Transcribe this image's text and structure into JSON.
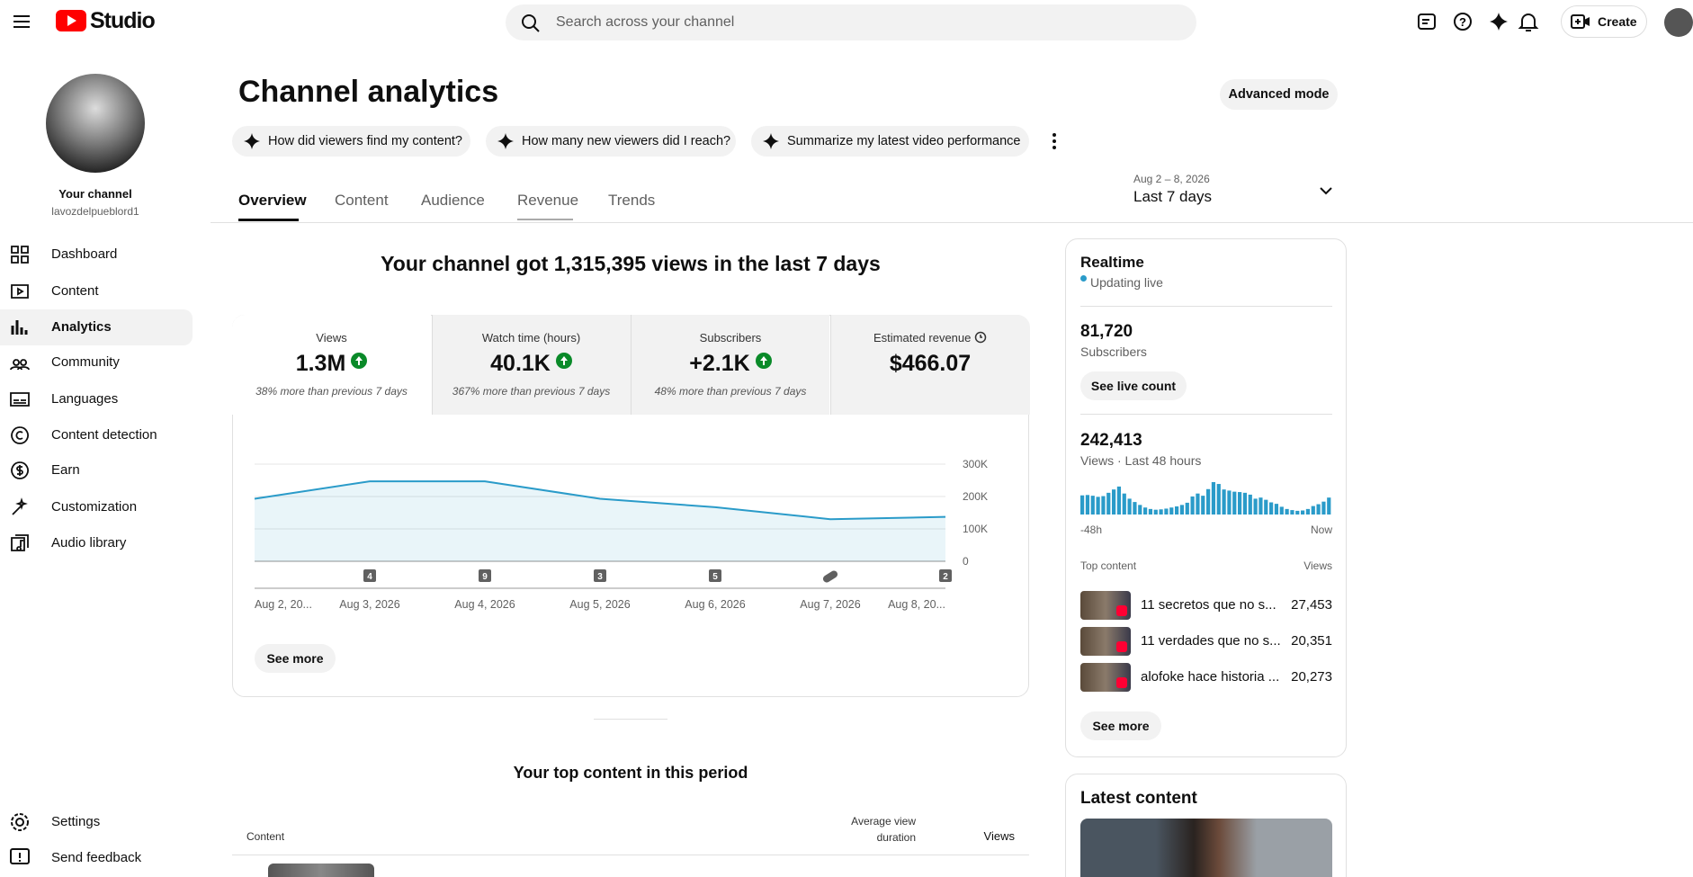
{
  "header": {
    "logo": "Studio",
    "search_placeholder": "Search across your channel",
    "create": "Create"
  },
  "sidebar": {
    "channel_label": "Your channel",
    "handle": "lavozdelpueblord1",
    "menu": [
      "Dashboard",
      "Content",
      "Analytics",
      "Community",
      "Languages",
      "Content detection",
      "Earn",
      "Customization",
      "Audio library"
    ],
    "footer": [
      "Settings",
      "Send feedback"
    ]
  },
  "page": {
    "title": "Channel analytics",
    "advanced_mode": "Advanced mode",
    "prompts": [
      "How did viewers find my content?",
      "How many new viewers did I reach?",
      "Summarize my latest video performance"
    ],
    "tabs": [
      "Overview",
      "Content",
      "Audience",
      "Revenue",
      "Trends"
    ],
    "date_range": "Aug 2 – 8, 2026",
    "period": "Last 7 days",
    "headline": "Your channel got 1,315,395 views in the last 7 days"
  },
  "metrics": [
    {
      "label": "Views",
      "value": "1.3M",
      "change": "38% more than previous 7 days"
    },
    {
      "label": "Watch time (hours)",
      "value": "40.1K",
      "change": "367% more than previous 7 days"
    },
    {
      "label": "Subscribers",
      "value": "+2.1K",
      "change": "48% more than previous 7 days"
    },
    {
      "label": "Estimated revenue",
      "value": "$466.07"
    }
  ],
  "chart_data": [
    {
      "type": "line",
      "x": [
        "Aug 2, 20...",
        "Aug 3, 2026",
        "Aug 4, 2026",
        "Aug 5, 2026",
        "Aug 6, 2026",
        "Aug 7, 2026",
        "Aug 8, 20..."
      ],
      "values": [
        193000,
        247000,
        247000,
        193000,
        167000,
        130000,
        137000
      ],
      "ylim": [
        0,
        300000
      ],
      "yticks": [
        {
          "value": 0,
          "label": "0"
        },
        {
          "value": 100000,
          "label": "100K"
        },
        {
          "value": 200000,
          "label": "200K"
        },
        {
          "value": 300000,
          "label": "300K"
        }
      ],
      "grid": true,
      "color": "#2a9bc9",
      "markers": [
        null,
        "4",
        "9",
        "3",
        "5",
        null,
        "2"
      ],
      "see_more": "See more"
    },
    {
      "type": "bar",
      "values": [
        5200,
        5300,
        5100,
        4800,
        5000,
        5900,
        6800,
        7600,
        5700,
        4300,
        3400,
        2600,
        1900,
        1500,
        1300,
        1400,
        1600,
        1900,
        2200,
        2600,
        3200,
        4900,
        5700,
        5100,
        6900,
        8800,
        8300,
        6800,
        6500,
        6200,
        6100,
        5900,
        5400,
        4300,
        4600,
        4000,
        3300,
        2900,
        2100,
        1500,
        1200,
        1000,
        1100,
        1500,
        2300,
        2800,
        3500,
        4600
      ],
      "color": "#2a9bc9",
      "xlabels": [
        "-48h",
        "Now"
      ]
    }
  ],
  "realtime": {
    "title": "Realtime",
    "status": "Updating live",
    "subscribers": "81,720",
    "subscribers_label": "Subscribers",
    "live_count": "See live count",
    "views": "242,413",
    "views_label": "Views · Last 48 hours",
    "top_content_label": "Top content",
    "views_col": "Views",
    "top": [
      {
        "title": "11 secretos que no s...",
        "views": "27,453"
      },
      {
        "title": "11 verdades que no s...",
        "views": "20,351"
      },
      {
        "title": "alofoke hace historia ...",
        "views": "20,273"
      }
    ],
    "see_more": "See more"
  },
  "top_content": {
    "title": "Your top content in this period",
    "columns": [
      "Content",
      "Average view duration",
      "Views"
    ]
  },
  "latest": {
    "title": "Latest content"
  }
}
